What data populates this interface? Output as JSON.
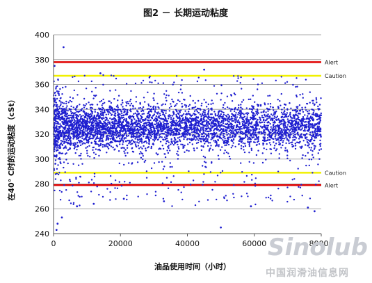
{
  "chart_data": {
    "type": "scatter",
    "title": "图2 － 长期运动粘度",
    "xlabel": "油品使用时间（小时）",
    "ylabel": "在40° C时的运动粘度（cSt）",
    "xlim": [
      0,
      80000
    ],
    "ylim": [
      240,
      400
    ],
    "xticks": [
      "0",
      "20000",
      "40000",
      "60000",
      "80000"
    ],
    "yticks": [
      "240",
      "260",
      "280",
      "300",
      "320",
      "340",
      "360",
      "380",
      "400"
    ],
    "grid": "horizontal",
    "series_color": "#1f1fd0",
    "reference_lines": [
      {
        "label": "Alert",
        "y": 378,
        "color": "#e00000"
      },
      {
        "label": "Caution",
        "y": 367,
        "color": "#f0f000"
      },
      {
        "label": "Caution",
        "y": 289,
        "color": "#f0f000"
      },
      {
        "label": "Alert",
        "y": 279,
        "color": "#e00000"
      }
    ],
    "points": [
      {
        "x": 3000,
        "y": 390
      },
      {
        "x": 14000,
        "y": 369
      },
      {
        "x": 45000,
        "y": 372
      },
      {
        "x": 300,
        "y": 375
      },
      {
        "x": 1200,
        "y": 248
      },
      {
        "x": 900,
        "y": 243
      },
      {
        "x": 2500,
        "y": 253
      },
      {
        "x": 7000,
        "y": 262
      },
      {
        "x": 12000,
        "y": 264
      },
      {
        "x": 21000,
        "y": 268
      },
      {
        "x": 50000,
        "y": 245
      },
      {
        "x": 59000,
        "y": 262
      },
      {
        "x": 76000,
        "y": 261
      },
      {
        "x": 78000,
        "y": 258
      },
      {
        "x": 33000,
        "y": 266
      }
    ],
    "cloud": {
      "count": 4500,
      "x_range": [
        0,
        80000
      ],
      "center_y": 326,
      "spread_y": 9,
      "outlier_fraction": 0.12,
      "outlier_range": [
        262,
        368
      ]
    }
  },
  "watermark": {
    "brand": "Sinolub",
    "text": "中国润滑油信息网"
  }
}
